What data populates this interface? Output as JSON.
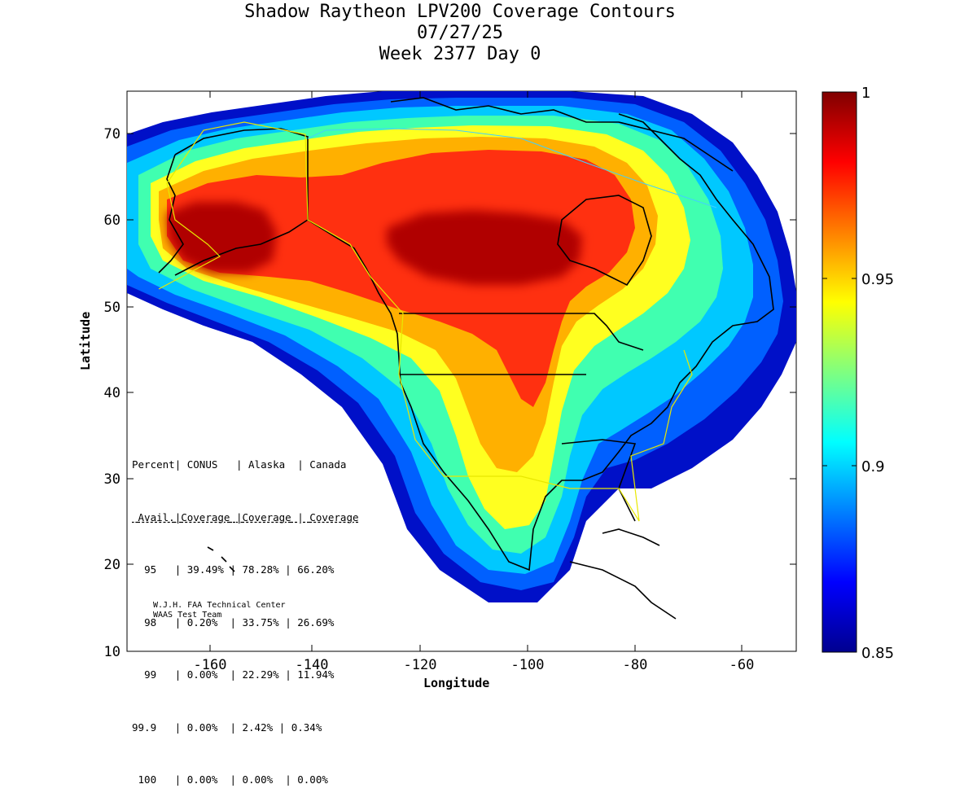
{
  "title": {
    "line1": "Shadow Raytheon LPV200 Coverage Contours",
    "line2": "07/27/25",
    "line3": "Week 2377 Day 0"
  },
  "axes": {
    "xlabel": "Longitude",
    "ylabel": "Latitude",
    "xlim": [
      -175,
      -50
    ],
    "ylim": [
      10,
      75
    ],
    "xticks": [
      "-160",
      "-140",
      "-120",
      "-100",
      "-80",
      "-60"
    ],
    "yticks": [
      "10",
      "20",
      "30",
      "40",
      "50",
      "60",
      "70"
    ]
  },
  "colorbar": {
    "range": [
      0.85,
      1
    ],
    "ticks": [
      "0.85",
      "0.9",
      "0.95",
      "1"
    ]
  },
  "stats_table": {
    "header1": [
      "Percent",
      "CONUS",
      "Alaska",
      "Canada"
    ],
    "header2": [
      "Avail.",
      "Coverage",
      "Coverage",
      "Coverage"
    ],
    "rows": [
      [
        "95",
        "39.49%",
        "78.28%",
        "66.20%"
      ],
      [
        "98",
        "0.20%",
        "33.75%",
        "26.69%"
      ],
      [
        "99",
        "0.00%",
        "22.29%",
        "11.94%"
      ],
      [
        "99.9",
        "0.00%",
        "2.42%",
        "0.34%"
      ],
      [
        "100",
        "0.00%",
        "0.00%",
        "0.00%"
      ]
    ]
  },
  "credit": {
    "line1": "W.J.H. FAA Technical Center",
    "line2": "WAAS Test Team"
  },
  "map_regions": {
    "alaska_peak": "Alaska",
    "canada_peak": "Canada",
    "conus": "CONUS"
  }
}
